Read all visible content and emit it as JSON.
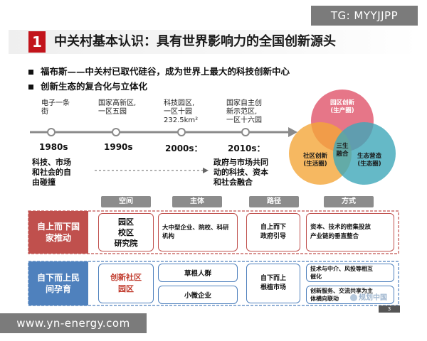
{
  "watermark_top": "TG: MYYJJPP",
  "watermark_bottom": "www.yn-energy.com",
  "section_number": "1",
  "title": "中关村基本认识：具有世界影响力的全国创新源头",
  "bullets": [
    "福布斯——中关村已取代硅谷，成为世界上最大的科技创新中心",
    "创新生态的复合化与立体化"
  ],
  "timeline": {
    "milestones": [
      {
        "label_lines": [
          "电子一条",
          "街"
        ],
        "era": "1980s"
      },
      {
        "label_lines": [
          "国家高新区,",
          "一区五园"
        ],
        "era": "1990s"
      },
      {
        "label_lines": [
          "科技园区,",
          "一区十园",
          "232.5km²"
        ],
        "era": "2000s："
      },
      {
        "label_lines": [
          "国家自主创",
          "新示范区,",
          "一区十六园"
        ],
        "era": "2010s："
      }
    ],
    "left_desc": [
      "科技、市场",
      "和社会的自",
      "由碰撞"
    ],
    "right_desc": [
      "政府与市场共同",
      "动的科技、资本",
      "和社会融合"
    ]
  },
  "venn": {
    "top": [
      "园区创新",
      "(生产圈)"
    ],
    "left": [
      "社区创新",
      "(生活圈)"
    ],
    "right": [
      "生态营造",
      "(生态圈)"
    ],
    "center": [
      "三生",
      "融合"
    ]
  },
  "table": {
    "headers": [
      "空间",
      "主体",
      "路径",
      "方式"
    ],
    "rows": [
      {
        "label": [
          "自上而下国",
          "家推动"
        ],
        "space": [
          "园区",
          "校区",
          "研究院"
        ],
        "subject": [
          "大中型企业、院校、科研",
          "机构"
        ],
        "path": [
          "自上而下",
          "政府引导"
        ],
        "method": [
          "资本、技术的密集投放",
          "产业链的垂直整合"
        ]
      },
      {
        "label": [
          "自下而上民",
          "间孕育"
        ],
        "space": [
          "创新社区",
          "园区"
        ],
        "subject_a": "草根人群",
        "subject_b": "小微企业",
        "path": [
          "自下而上",
          "根植市场"
        ],
        "method_a": [
          "技术与中介、风投等相互",
          "催化"
        ],
        "method_b": [
          "创新服务、交流共享为主",
          "体横向联动"
        ]
      }
    ]
  },
  "page_number": "3",
  "source_watermark": "规划中国",
  "colors": {
    "brand_red": "#c2141b",
    "row1_bg": "#c0504d",
    "row2_bg": "#4f81bd",
    "venn_top": "#e0546a",
    "venn_left": "#f4a63a",
    "venn_right": "#3fa7b9"
  }
}
